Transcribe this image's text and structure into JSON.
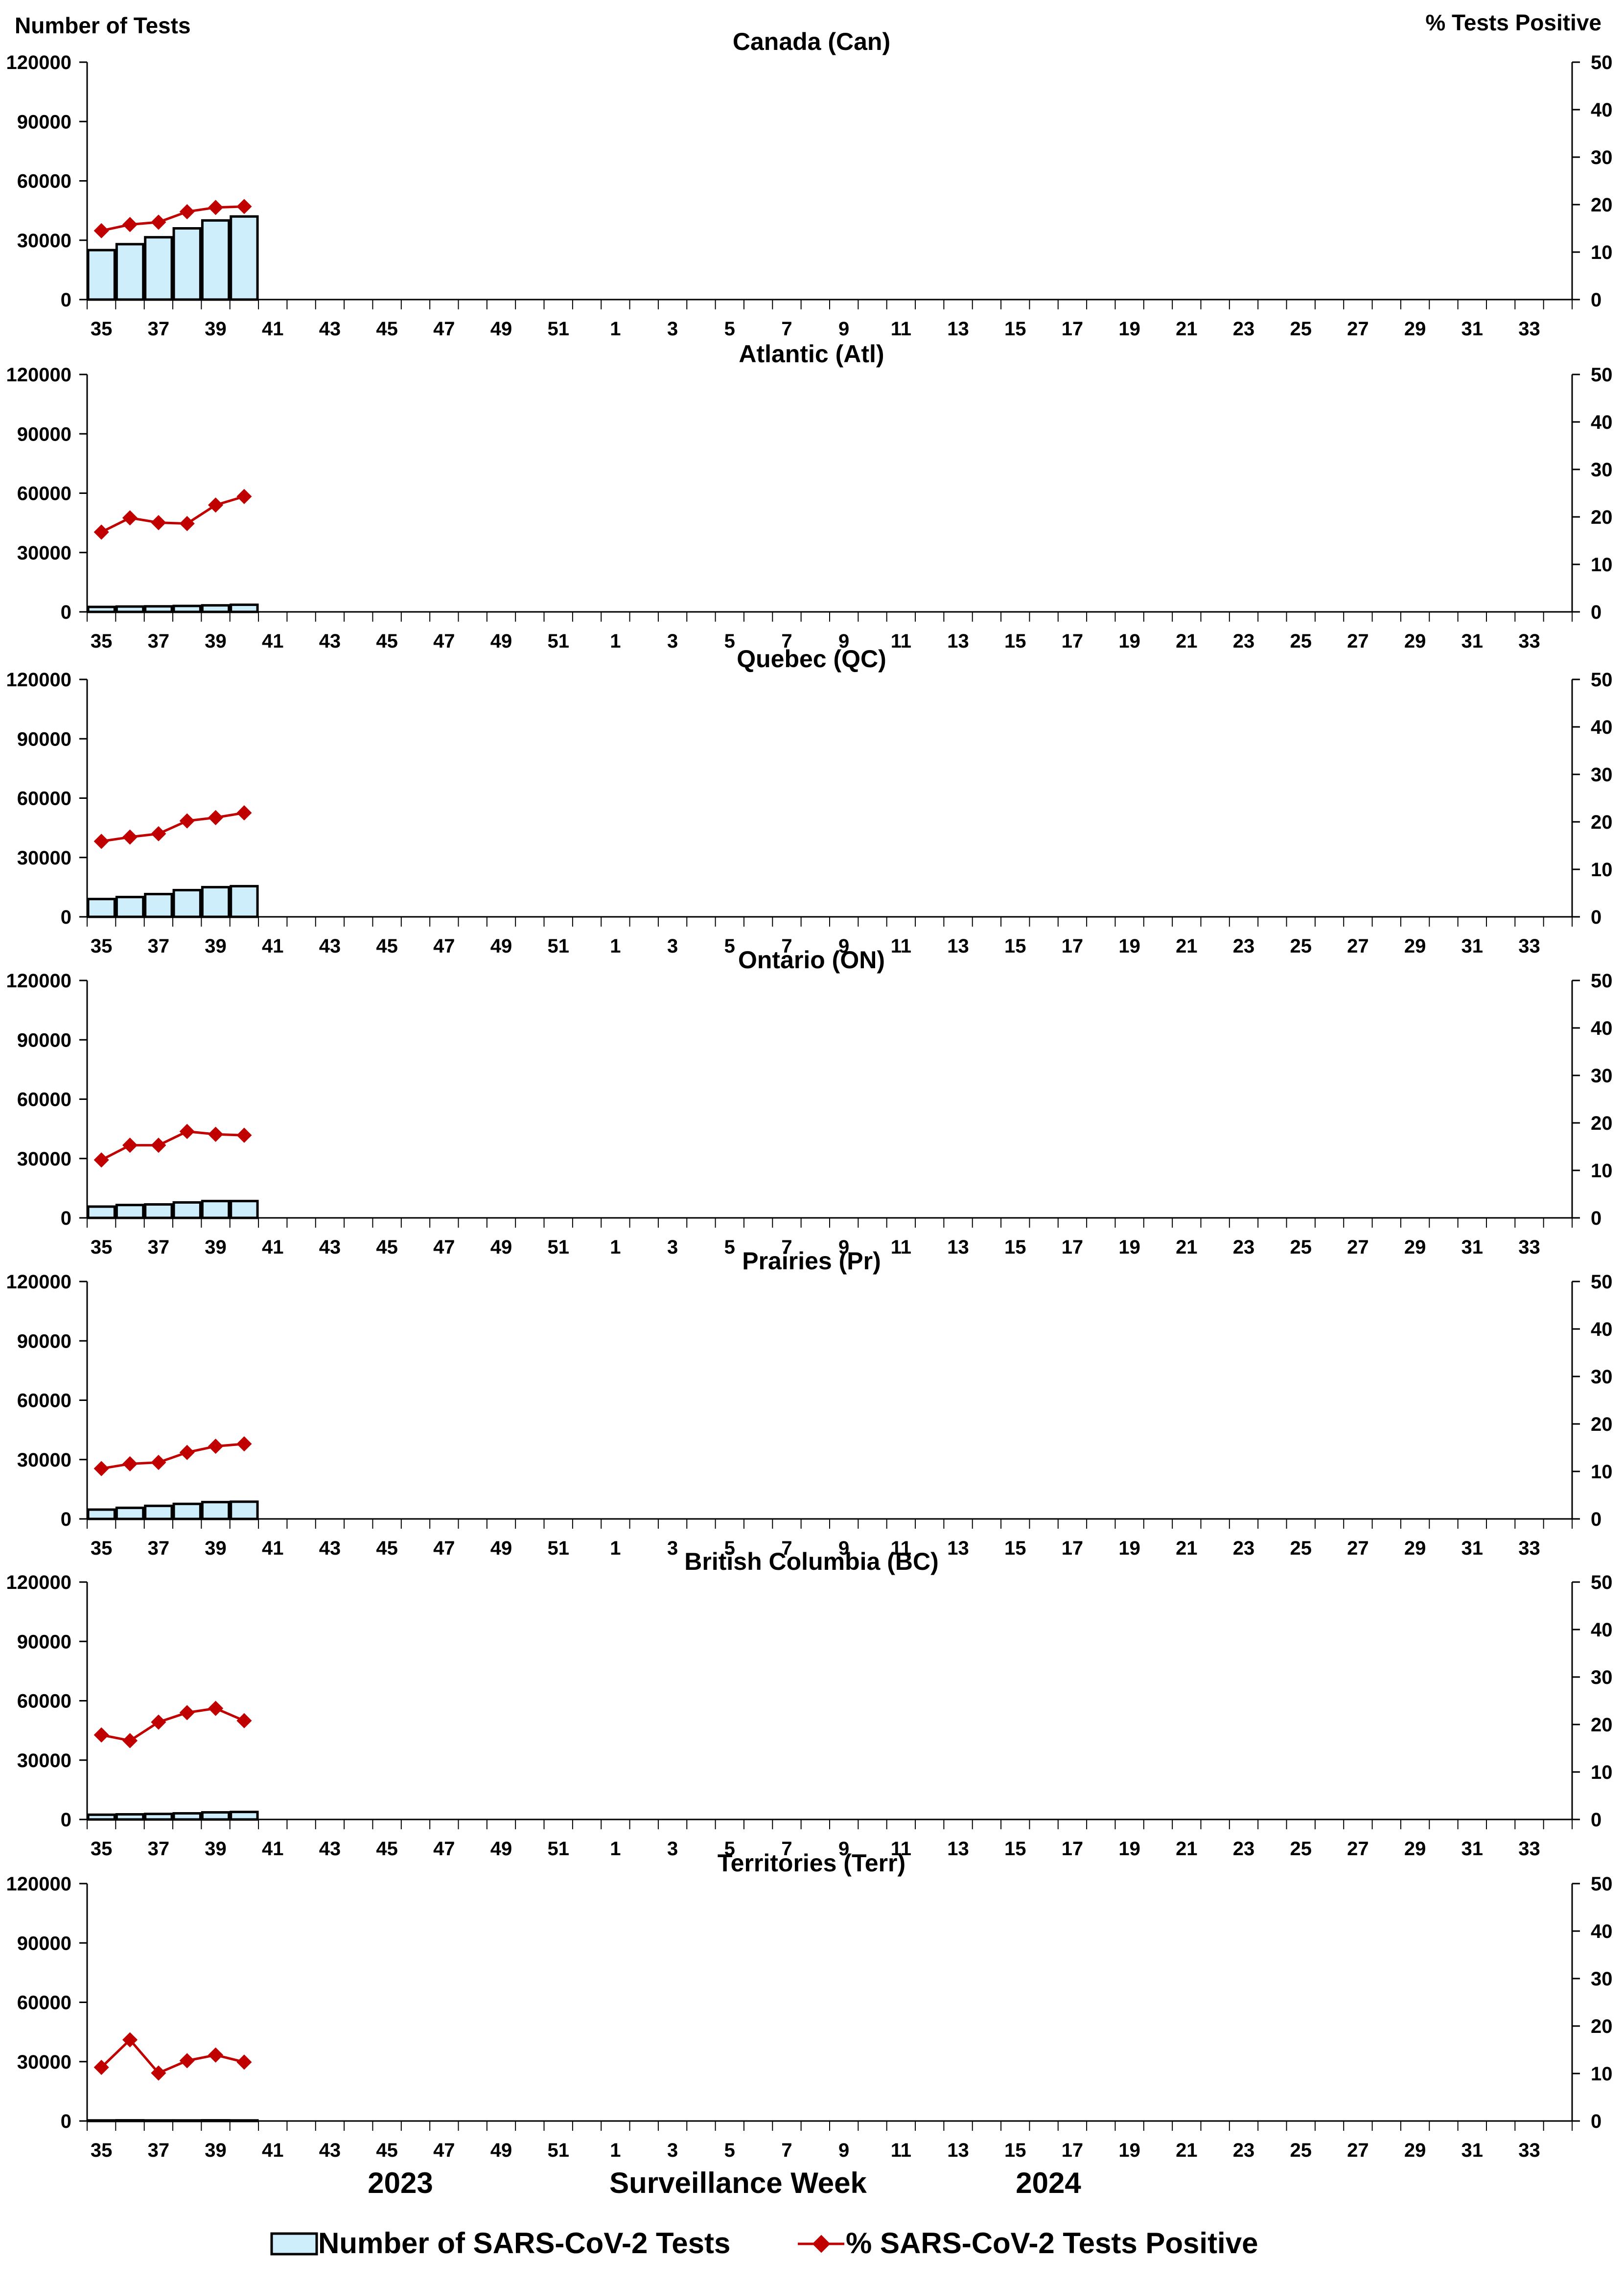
{
  "chart_data": {
    "type": "bar",
    "left_axis_title": "Number of Tests",
    "right_axis_title": "% Tests Positive",
    "xlabel": "Surveillance Week",
    "year_labels": [
      "2023",
      "2024"
    ],
    "x_ticks": [
      "35",
      "37",
      "39",
      "41",
      "43",
      "45",
      "47",
      "49",
      "51",
      "1",
      "3",
      "5",
      "7",
      "9",
      "11",
      "13",
      "15",
      "17",
      "19",
      "21",
      "23",
      "25",
      "27",
      "29",
      "31",
      "33"
    ],
    "week_slots": 52,
    "left_ylim": [
      0,
      120000
    ],
    "left_yticks": [
      "0",
      "30000",
      "60000",
      "90000",
      "120000"
    ],
    "right_ylim": [
      0,
      50
    ],
    "right_yticks": [
      "0",
      "10",
      "20",
      "30",
      "40",
      "50"
    ],
    "weeks_with_data": [
      35,
      36,
      37,
      38,
      39,
      40
    ],
    "legend": {
      "tests_label": "Number of SARS-CoV-2 Tests",
      "positive_label": "% SARS-CoV-2 Tests Positive"
    },
    "colors": {
      "bar_fill": "#cfeefc",
      "bar_stroke": "#000000",
      "line": "#c00000"
    },
    "panels": [
      {
        "title": "Canada (Can)",
        "tests": [
          25000,
          28000,
          31500,
          36000,
          40000,
          42000
        ],
        "percent_positive": [
          14.5,
          15.8,
          16.3,
          18.5,
          19.4,
          19.6
        ]
      },
      {
        "title": "Atlantic (Atl)",
        "tests": [
          2500,
          2700,
          2800,
          3000,
          3300,
          3600
        ],
        "percent_positive": [
          16.8,
          19.8,
          18.8,
          18.6,
          22.5,
          24.3
        ]
      },
      {
        "title": "Quebec (QC)",
        "tests": [
          9000,
          10000,
          11500,
          13500,
          15000,
          15500
        ],
        "percent_positive": [
          15.9,
          16.8,
          17.5,
          20.2,
          20.9,
          21.9
        ]
      },
      {
        "title": "Ontario (ON)",
        "tests": [
          5700,
          6500,
          6800,
          7800,
          8500,
          8500
        ],
        "percent_positive": [
          12.2,
          15.3,
          15.3,
          18.2,
          17.6,
          17.4
        ]
      },
      {
        "title": "Prairies (Pr)",
        "tests": [
          4700,
          5600,
          6600,
          7600,
          8500,
          8700
        ],
        "percent_positive": [
          10.6,
          11.6,
          11.9,
          14.0,
          15.3,
          15.8
        ]
      },
      {
        "title": "British Columbia (BC)",
        "tests": [
          2400,
          2600,
          2800,
          3100,
          3600,
          3800
        ],
        "percent_positive": [
          17.8,
          16.6,
          20.5,
          22.5,
          23.4,
          20.8
        ]
      },
      {
        "title": "Territories (Terr)",
        "tests": [
          300,
          350,
          300,
          300,
          350,
          300
        ],
        "percent_positive": [
          11.3,
          17.1,
          10.1,
          12.7,
          13.9,
          12.4
        ]
      }
    ]
  }
}
